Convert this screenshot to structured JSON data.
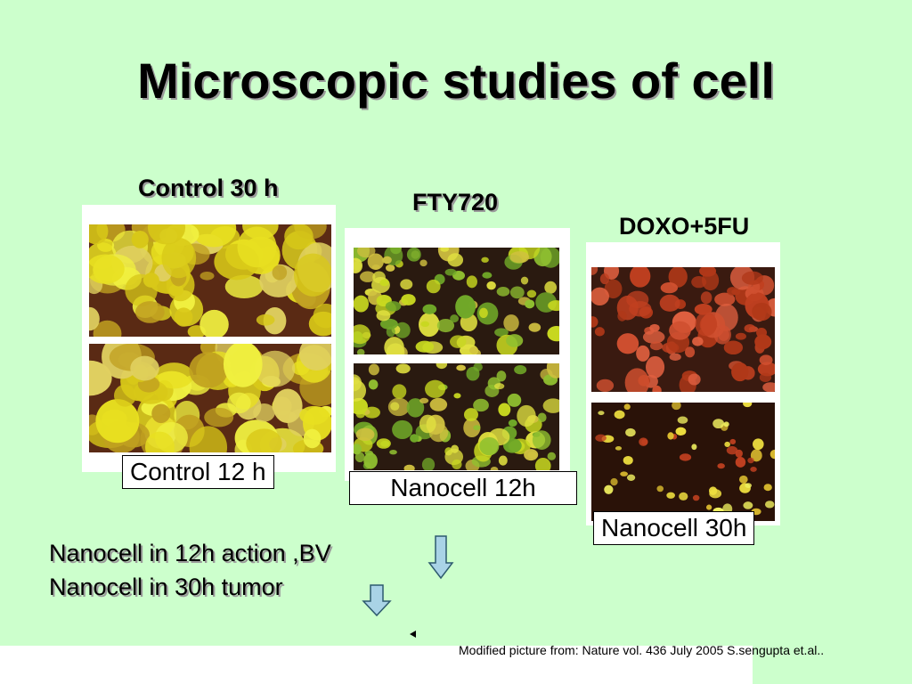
{
  "title": "Microscopic studies of cell",
  "panels": [
    {
      "heading": "Control 30 h",
      "caption": "Control 12 h"
    },
    {
      "heading": "FTY720",
      "caption": "Nanocell 12h"
    },
    {
      "heading": "DOXO+5FU",
      "caption": "Nanocell 30h"
    }
  ],
  "notes": [
    "Nanocell in 12h action ,BV",
    "Nanocell in 30h tumor"
  ],
  "footer": "Modified picture from: Nature vol. 436 July 2005 S.sengupta et.al.."
}
